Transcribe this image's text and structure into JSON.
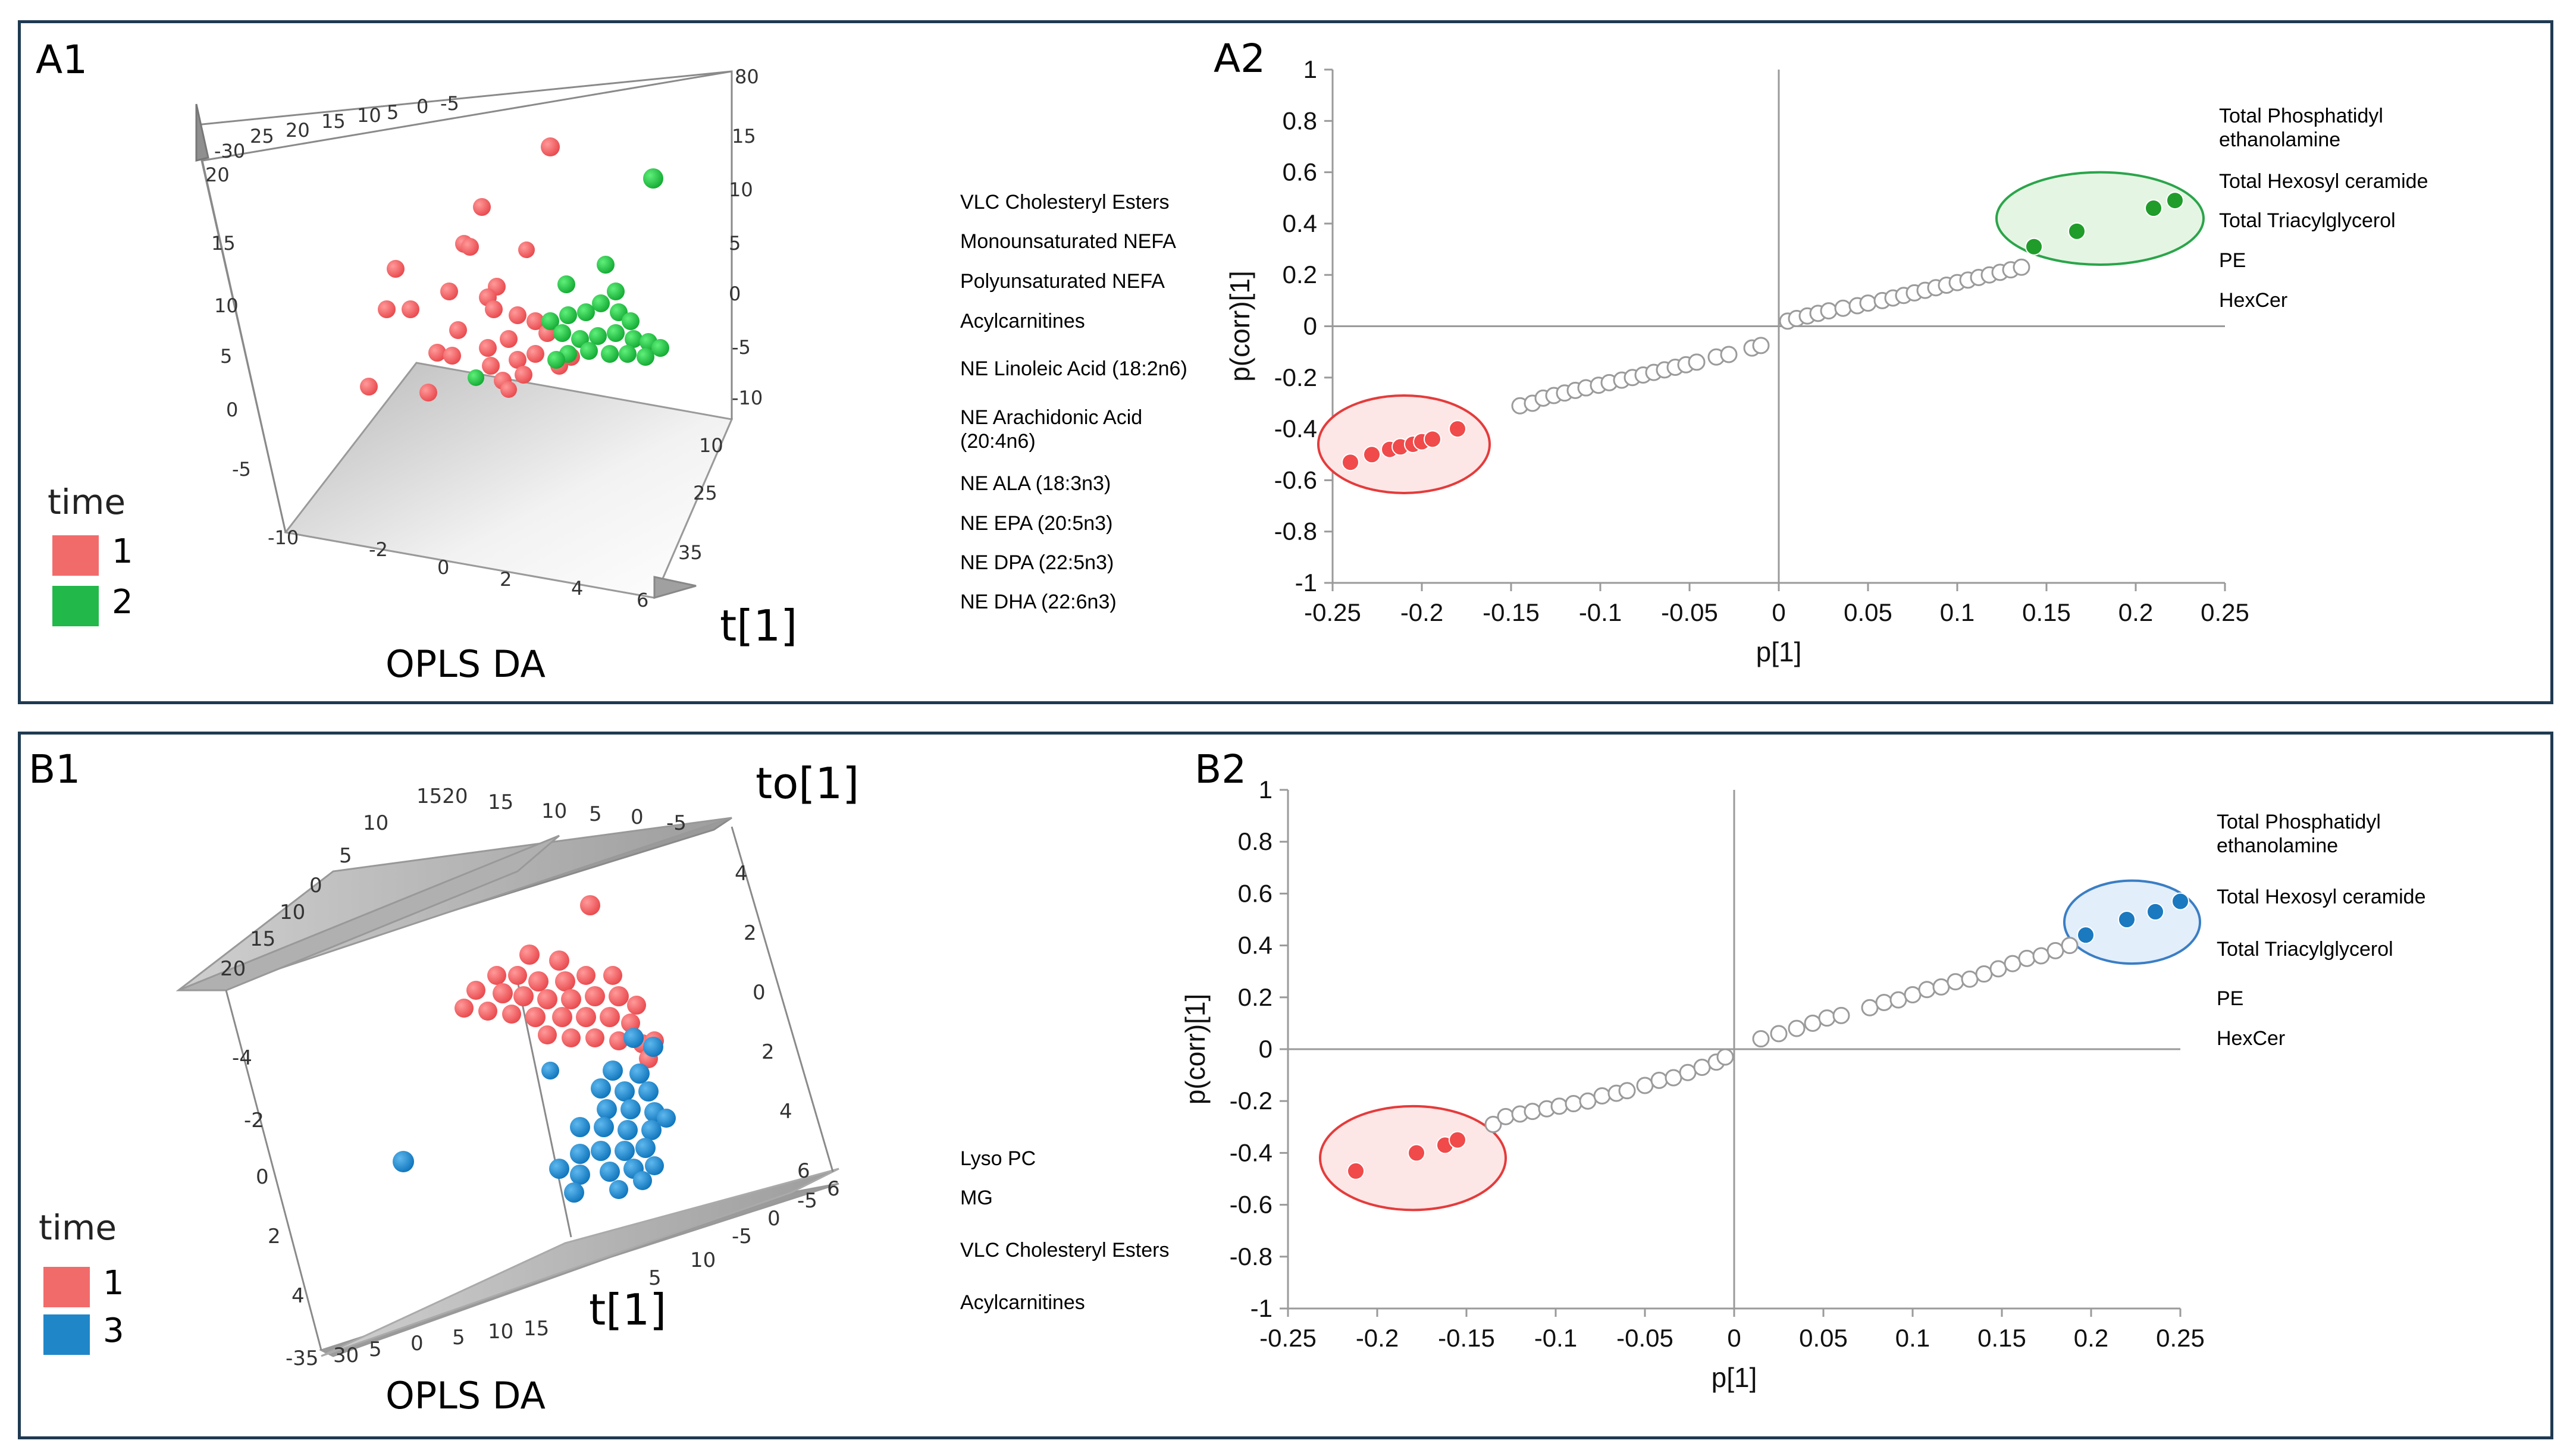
{
  "panels": {
    "a": {
      "label3d": "A1",
      "label2d": "A2",
      "caption": "OPLS DA",
      "axis_t": "t[1]",
      "legend": {
        "title": "time",
        "items": [
          {
            "label": "1",
            "color": "#f26b6b"
          },
          {
            "label": "2",
            "color": "#22b84a"
          }
        ]
      },
      "mid_labels": [
        "VLC Cholesteryl Esters",
        "Monounsaturated NEFA",
        "Polyunsaturated NEFA",
        "Acylcarnitines",
        "NE Linoleic Acid (18:2n6)",
        "NE Arachidonic Acid (20:4n6)",
        "NE ALA (18:3n3)",
        "NE EPA (20:5n3)",
        "NE DPA (22:5n3)",
        "NE DHA (22:6n3)"
      ],
      "right_labels": [
        "Total Phosphatidyl ethanolamine",
        "Total Hexosyl ceramide",
        "Total Triacylglycerol",
        "PE",
        "HexCer"
      ]
    },
    "b": {
      "label3d": "B1",
      "label2d": "B2",
      "caption": "OPLS DA",
      "axis_t": "t[1]",
      "axis_to": "to[1]",
      "legend": {
        "title": "time",
        "items": [
          {
            "label": "1",
            "color": "#f26b6b"
          },
          {
            "label": "3",
            "color": "#1f86c8"
          }
        ]
      },
      "mid_labels": [
        "Lyso PC",
        "MG",
        "VLC Cholesteryl Esters",
        "Acylcarnitines"
      ],
      "right_labels": [
        "Total Phosphatidyl ethanolamine",
        "Total Hexosyl ceramide",
        "Total Triacylglycerol",
        "PE",
        "HexCer"
      ]
    }
  },
  "chart_data": [
    {
      "id": "A2",
      "type": "scatter",
      "title": "",
      "xlabel": "p[1]",
      "ylabel": "p(corr)[1]",
      "xlim": [
        -0.25,
        0.25
      ],
      "ylim": [
        -1,
        1
      ],
      "xticks": [
        "-0.25",
        "-0.2",
        "-0.15",
        "-0.1",
        "-0.05",
        "0",
        "0.05",
        "0.1",
        "0.15",
        "0.2",
        "0.25"
      ],
      "yticks": [
        "1",
        "0.8",
        "0.6",
        "0.4",
        "0.2",
        "0",
        "-0.2",
        "-0.4",
        "-0.6",
        "-0.8",
        "-1"
      ],
      "neutral_points": [
        [
          -0.145,
          -0.31
        ],
        [
          -0.138,
          -0.3
        ],
        [
          -0.132,
          -0.28
        ],
        [
          -0.126,
          -0.27
        ],
        [
          -0.12,
          -0.26
        ],
        [
          -0.114,
          -0.25
        ],
        [
          -0.108,
          -0.24
        ],
        [
          -0.101,
          -0.23
        ],
        [
          -0.095,
          -0.22
        ],
        [
          -0.088,
          -0.21
        ],
        [
          -0.082,
          -0.2
        ],
        [
          -0.076,
          -0.19
        ],
        [
          -0.07,
          -0.18
        ],
        [
          -0.064,
          -0.17
        ],
        [
          -0.058,
          -0.16
        ],
        [
          -0.052,
          -0.15
        ],
        [
          -0.046,
          -0.14
        ],
        [
          -0.035,
          -0.12
        ],
        [
          -0.028,
          -0.11
        ],
        [
          -0.015,
          -0.085
        ],
        [
          -0.01,
          -0.075
        ],
        [
          0.005,
          0.02
        ],
        [
          0.01,
          0.03
        ],
        [
          0.016,
          0.04
        ],
        [
          0.022,
          0.05
        ],
        [
          0.028,
          0.06
        ],
        [
          0.036,
          0.07
        ],
        [
          0.044,
          0.08
        ],
        [
          0.05,
          0.09
        ],
        [
          0.058,
          0.1
        ],
        [
          0.064,
          0.11
        ],
        [
          0.07,
          0.12
        ],
        [
          0.076,
          0.13
        ],
        [
          0.082,
          0.14
        ],
        [
          0.088,
          0.15
        ],
        [
          0.094,
          0.16
        ],
        [
          0.1,
          0.17
        ],
        [
          0.106,
          0.18
        ],
        [
          0.112,
          0.19
        ],
        [
          0.118,
          0.2
        ],
        [
          0.124,
          0.21
        ],
        [
          0.13,
          0.22
        ],
        [
          0.136,
          0.23
        ]
      ],
      "series": [
        {
          "name": "time 1 markers",
          "color": "#f04a4a",
          "points": [
            [
              -0.24,
              -0.53
            ],
            [
              -0.228,
              -0.5
            ],
            [
              -0.218,
              -0.48
            ],
            [
              -0.212,
              -0.47
            ],
            [
              -0.205,
              -0.46
            ],
            [
              -0.2,
              -0.45
            ],
            [
              -0.194,
              -0.44
            ],
            [
              -0.18,
              -0.4
            ]
          ]
        },
        {
          "name": "time 2 markers",
          "color": "#1f9c2a",
          "points": [
            [
              0.143,
              0.31
            ],
            [
              0.167,
              0.37
            ],
            [
              0.21,
              0.46
            ],
            [
              0.222,
              0.49
            ]
          ]
        }
      ],
      "ellipses": [
        {
          "cx": -0.21,
          "cy": -0.46,
          "rx": 0.048,
          "ry": 0.19,
          "stroke": "#e53b3b",
          "fill": "#fde6e6"
        },
        {
          "cx": 0.18,
          "cy": 0.42,
          "rx": 0.058,
          "ry": 0.18,
          "stroke": "#2aa54a",
          "fill": "#e5f5e3"
        }
      ]
    },
    {
      "id": "B2",
      "type": "scatter",
      "title": "",
      "xlabel": "p[1]",
      "ylabel": "p(corr)[1]",
      "xlim": [
        -0.25,
        0.25
      ],
      "ylim": [
        -1,
        1
      ],
      "xticks": [
        "-0.25",
        "-0.2",
        "-0.15",
        "-0.1",
        "-0.05",
        "0",
        "0.05",
        "0.1",
        "0.15",
        "0.2",
        "0.25"
      ],
      "yticks": [
        "1",
        "0.8",
        "0.6",
        "0.4",
        "0.2",
        "0",
        "-0.2",
        "-0.4",
        "-0.6",
        "-0.8",
        "-1"
      ],
      "neutral_points": [
        [
          -0.135,
          -0.29
        ],
        [
          -0.128,
          -0.26
        ],
        [
          -0.12,
          -0.25
        ],
        [
          -0.113,
          -0.24
        ],
        [
          -0.105,
          -0.23
        ],
        [
          -0.098,
          -0.22
        ],
        [
          -0.09,
          -0.21
        ],
        [
          -0.082,
          -0.2
        ],
        [
          -0.074,
          -0.18
        ],
        [
          -0.066,
          -0.17
        ],
        [
          -0.06,
          -0.16
        ],
        [
          -0.05,
          -0.14
        ],
        [
          -0.042,
          -0.12
        ],
        [
          -0.034,
          -0.11
        ],
        [
          -0.026,
          -0.09
        ],
        [
          -0.018,
          -0.07
        ],
        [
          -0.01,
          -0.05
        ],
        [
          -0.005,
          -0.03
        ],
        [
          0.015,
          0.04
        ],
        [
          0.025,
          0.06
        ],
        [
          0.035,
          0.08
        ],
        [
          0.044,
          0.1
        ],
        [
          0.052,
          0.12
        ],
        [
          0.06,
          0.13
        ],
        [
          0.076,
          0.16
        ],
        [
          0.084,
          0.18
        ],
        [
          0.092,
          0.19
        ],
        [
          0.1,
          0.21
        ],
        [
          0.108,
          0.23
        ],
        [
          0.116,
          0.24
        ],
        [
          0.124,
          0.26
        ],
        [
          0.132,
          0.27
        ],
        [
          0.14,
          0.29
        ],
        [
          0.148,
          0.31
        ],
        [
          0.156,
          0.33
        ],
        [
          0.164,
          0.35
        ],
        [
          0.172,
          0.36
        ],
        [
          0.18,
          0.38
        ],
        [
          0.188,
          0.4
        ]
      ],
      "series": [
        {
          "name": "time 1 markers",
          "color": "#f04a4a",
          "points": [
            [
              -0.212,
              -0.47
            ],
            [
              -0.178,
              -0.4
            ],
            [
              -0.162,
              -0.37
            ],
            [
              -0.155,
              -0.35
            ]
          ]
        },
        {
          "name": "time 3 markers",
          "color": "#1a79bf",
          "points": [
            [
              0.197,
              0.44
            ],
            [
              0.22,
              0.5
            ],
            [
              0.236,
              0.53
            ],
            [
              0.25,
              0.57
            ]
          ]
        }
      ],
      "ellipses": [
        {
          "cx": -0.18,
          "cy": -0.42,
          "rx": 0.052,
          "ry": 0.2,
          "stroke": "#e53b3b",
          "fill": "#fde6e6"
        },
        {
          "cx": 0.223,
          "cy": 0.49,
          "rx": 0.038,
          "ry": 0.16,
          "stroke": "#3a7ec5",
          "fill": "#e2eefa"
        }
      ]
    }
  ]
}
